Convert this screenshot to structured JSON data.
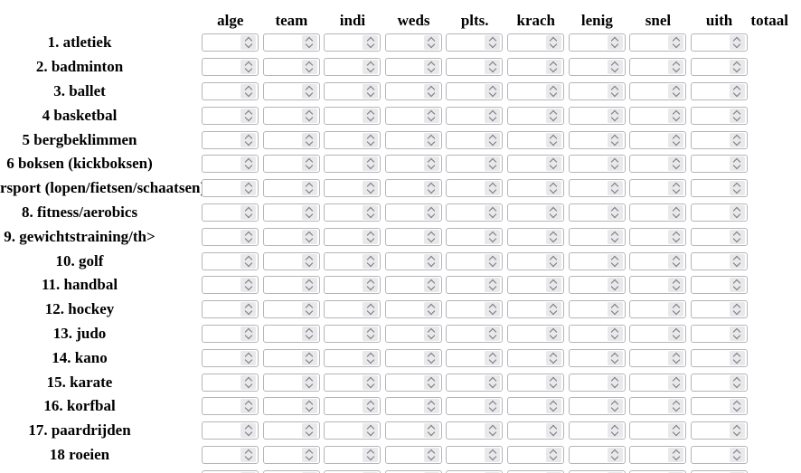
{
  "page": {
    "background_color": "#ffffff",
    "text_color": "#000000"
  },
  "grid": {
    "column_headers": [
      "alge",
      "team",
      "indi",
      "weds",
      "plts.",
      "krach",
      "lenig",
      "snel",
      "uith",
      "totaal"
    ],
    "inputs_per_row": 9,
    "input_value": "",
    "partial_rows_below": 1,
    "rows": [
      {
        "label": "1. atletiek"
      },
      {
        "label": "2. badminton"
      },
      {
        "label": "3. ballet"
      },
      {
        "label": "4 basketbal"
      },
      {
        "label": "5 bergbeklimmen"
      },
      {
        "label": "6 boksen (kickboksen)"
      },
      {
        "label": "rsport (lopen/fietsen/schaatsen)",
        "clipped_left": true
      },
      {
        "label": "8. fitness/aerobics"
      },
      {
        "label": "9. gewichtstraining/th>"
      },
      {
        "label": "10. golf"
      },
      {
        "label": "11. handbal"
      },
      {
        "label": "12. hockey"
      },
      {
        "label": "13. judo"
      },
      {
        "label": "14. kano"
      },
      {
        "label": "15. karate"
      },
      {
        "label": "16. korfbal"
      },
      {
        "label": "17. paardrijden"
      },
      {
        "label": "18 roeien"
      }
    ],
    "colors": {
      "input_border": "#b5b5b8",
      "spinner_background": "#e9e9ec",
      "chevron": "#77777c"
    }
  }
}
